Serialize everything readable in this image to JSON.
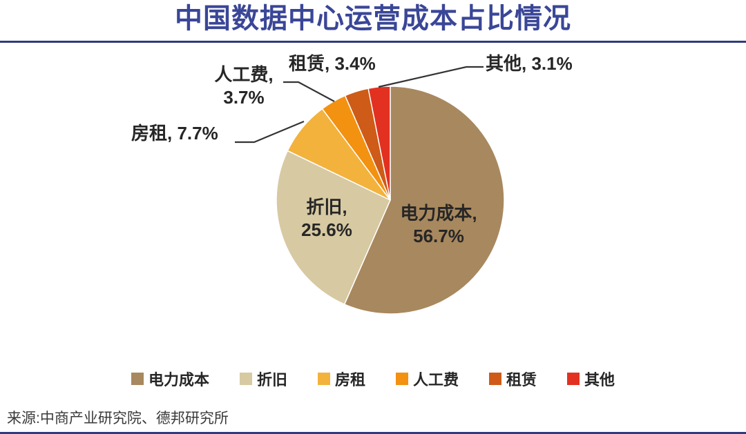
{
  "title": "中国数据中心运营成本占比情况",
  "source": "来源:中商产业研究院、德邦研究所",
  "colors": {
    "accent_navy": "#2D3A7D",
    "title_text": "#3A4697",
    "label_text": "#262626",
    "leader_line": "#333333"
  },
  "chart_data": {
    "type": "pie",
    "title": "中国数据中心运营成本占比情况",
    "unit": "percent",
    "start_angle_deg": 0,
    "direction": "clockwise",
    "legend_position": "bottom",
    "series": [
      {
        "name": "电力成本",
        "value": 56.7,
        "color": "#A8885E"
      },
      {
        "name": "折旧",
        "value": 25.6,
        "color": "#D7C9A2"
      },
      {
        "name": "房租",
        "value": 7.7,
        "color": "#F3B23C"
      },
      {
        "name": "人工费",
        "value": 3.7,
        "color": "#F39111"
      },
      {
        "name": "租赁",
        "value": 3.4,
        "color": "#CE5B17"
      },
      {
        "name": "其他",
        "value": 3.1,
        "color": "#E23120"
      }
    ],
    "callouts": {
      "dianli_chengben": "电力成本,\n56.7%",
      "zhejiu": "折旧,\n25.6%",
      "fangzu": "房租, 7.7%",
      "rengongfei": "人工费,\n3.7%",
      "zulin": "租赁, 3.4%",
      "qita": "其他, 3.1%"
    }
  }
}
